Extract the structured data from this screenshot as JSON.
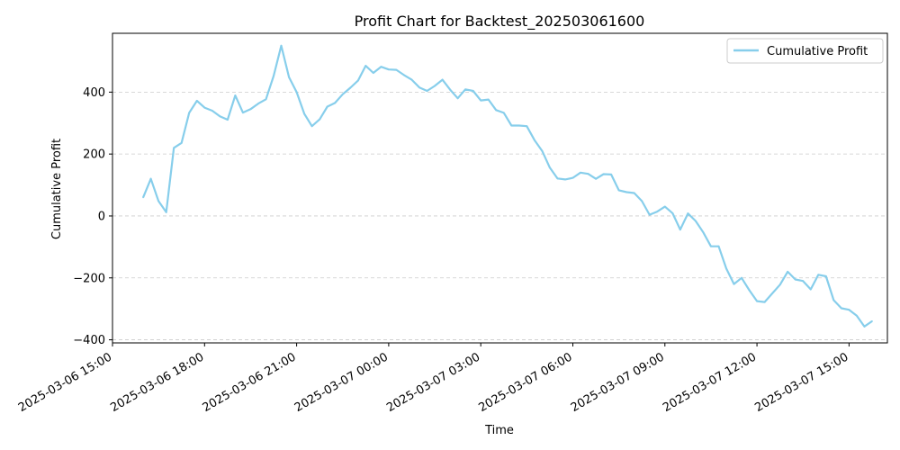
{
  "chart_data": {
    "type": "line",
    "title": "Profit Chart for Backtest_202503061600",
    "xlabel": "Time",
    "ylabel": "Cumulative Profit",
    "x_ticks": [
      "2025-03-06 15:00",
      "2025-03-06 18:00",
      "2025-03-06 21:00",
      "2025-03-07 00:00",
      "2025-03-07 03:00",
      "2025-03-07 06:00",
      "2025-03-07 09:00",
      "2025-03-07 12:00",
      "2025-03-07 15:00"
    ],
    "y_ticks": [
      -400,
      -200,
      0,
      200,
      400
    ],
    "xlim": [
      "2025-03-06 15:00",
      "2025-03-07 16:15"
    ],
    "ylim": [
      -400,
      600
    ],
    "grid": "horizontal dashed",
    "legend_position": "top-right",
    "line_color": "#87CEEB",
    "series": [
      {
        "name": "Cumulative Profit",
        "x": [
          "2025-03-06 16:00",
          "2025-03-06 16:15",
          "2025-03-06 16:30",
          "2025-03-06 16:45",
          "2025-03-06 17:00",
          "2025-03-06 17:15",
          "2025-03-06 17:30",
          "2025-03-06 17:45",
          "2025-03-06 18:00",
          "2025-03-06 18:15",
          "2025-03-06 18:30",
          "2025-03-06 18:45",
          "2025-03-06 19:00",
          "2025-03-06 19:15",
          "2025-03-06 19:30",
          "2025-03-06 19:45",
          "2025-03-06 20:00",
          "2025-03-06 20:15",
          "2025-03-06 20:30",
          "2025-03-06 20:45",
          "2025-03-06 21:00",
          "2025-03-06 21:15",
          "2025-03-06 21:30",
          "2025-03-06 21:45",
          "2025-03-06 22:00",
          "2025-03-06 22:15",
          "2025-03-06 22:30",
          "2025-03-06 22:45",
          "2025-03-06 23:00",
          "2025-03-06 23:15",
          "2025-03-06 23:30",
          "2025-03-06 23:45",
          "2025-03-07 00:00",
          "2025-03-07 00:15",
          "2025-03-07 00:30",
          "2025-03-07 00:45",
          "2025-03-07 01:00",
          "2025-03-07 01:15",
          "2025-03-07 01:30",
          "2025-03-07 01:45",
          "2025-03-07 02:00",
          "2025-03-07 02:15",
          "2025-03-07 02:30",
          "2025-03-07 02:45",
          "2025-03-07 03:00",
          "2025-03-07 03:15",
          "2025-03-07 03:30",
          "2025-03-07 03:45",
          "2025-03-07 04:00",
          "2025-03-07 04:15",
          "2025-03-07 04:30",
          "2025-03-07 04:45",
          "2025-03-07 05:00",
          "2025-03-07 05:15",
          "2025-03-07 05:30",
          "2025-03-07 05:45",
          "2025-03-07 06:00",
          "2025-03-07 06:15",
          "2025-03-07 06:30",
          "2025-03-07 06:45",
          "2025-03-07 07:00",
          "2025-03-07 07:15",
          "2025-03-07 07:30",
          "2025-03-07 07:45",
          "2025-03-07 08:00",
          "2025-03-07 08:15",
          "2025-03-07 08:30",
          "2025-03-07 08:45",
          "2025-03-07 09:00",
          "2025-03-07 09:15",
          "2025-03-07 09:30",
          "2025-03-07 09:45",
          "2025-03-07 10:00",
          "2025-03-07 10:15",
          "2025-03-07 10:30",
          "2025-03-07 10:45",
          "2025-03-07 11:00",
          "2025-03-07 11:15",
          "2025-03-07 11:30",
          "2025-03-07 11:45",
          "2025-03-07 12:00",
          "2025-03-07 12:15",
          "2025-03-07 12:30",
          "2025-03-07 12:45",
          "2025-03-07 13:00",
          "2025-03-07 13:15",
          "2025-03-07 13:30",
          "2025-03-07 13:45",
          "2025-03-07 14:00",
          "2025-03-07 14:15",
          "2025-03-07 14:30",
          "2025-03-07 14:45",
          "2025-03-07 15:00",
          "2025-03-07 15:15",
          "2025-03-07 15:30",
          "2025-03-07 15:45"
        ],
        "values": [
          60,
          120,
          48,
          12,
          220,
          236,
          333,
          372,
          350,
          340,
          322,
          311,
          389,
          334,
          345,
          363,
          377,
          452,
          550,
          448,
          400,
          330,
          290,
          312,
          353,
          365,
          393,
          414,
          437,
          485,
          462,
          482,
          473,
          472,
          455,
          440,
          415,
          404,
          420,
          440,
          408,
          380,
          409,
          404,
          373,
          376,
          342,
          333,
          292,
          292,
          290,
          245,
          210,
          156,
          121,
          118,
          123,
          140,
          136,
          120,
          135,
          134,
          83,
          77,
          74,
          48,
          4,
          14,
          30,
          9,
          -44,
          8,
          -16,
          -53,
          -98,
          -98,
          -170,
          -220,
          -200,
          -240,
          -275,
          -278,
          -250,
          -222,
          -180,
          -205,
          -210,
          -237,
          -190,
          -195,
          -272,
          -298,
          -303,
          -322,
          -357,
          -340
        ]
      }
    ]
  }
}
